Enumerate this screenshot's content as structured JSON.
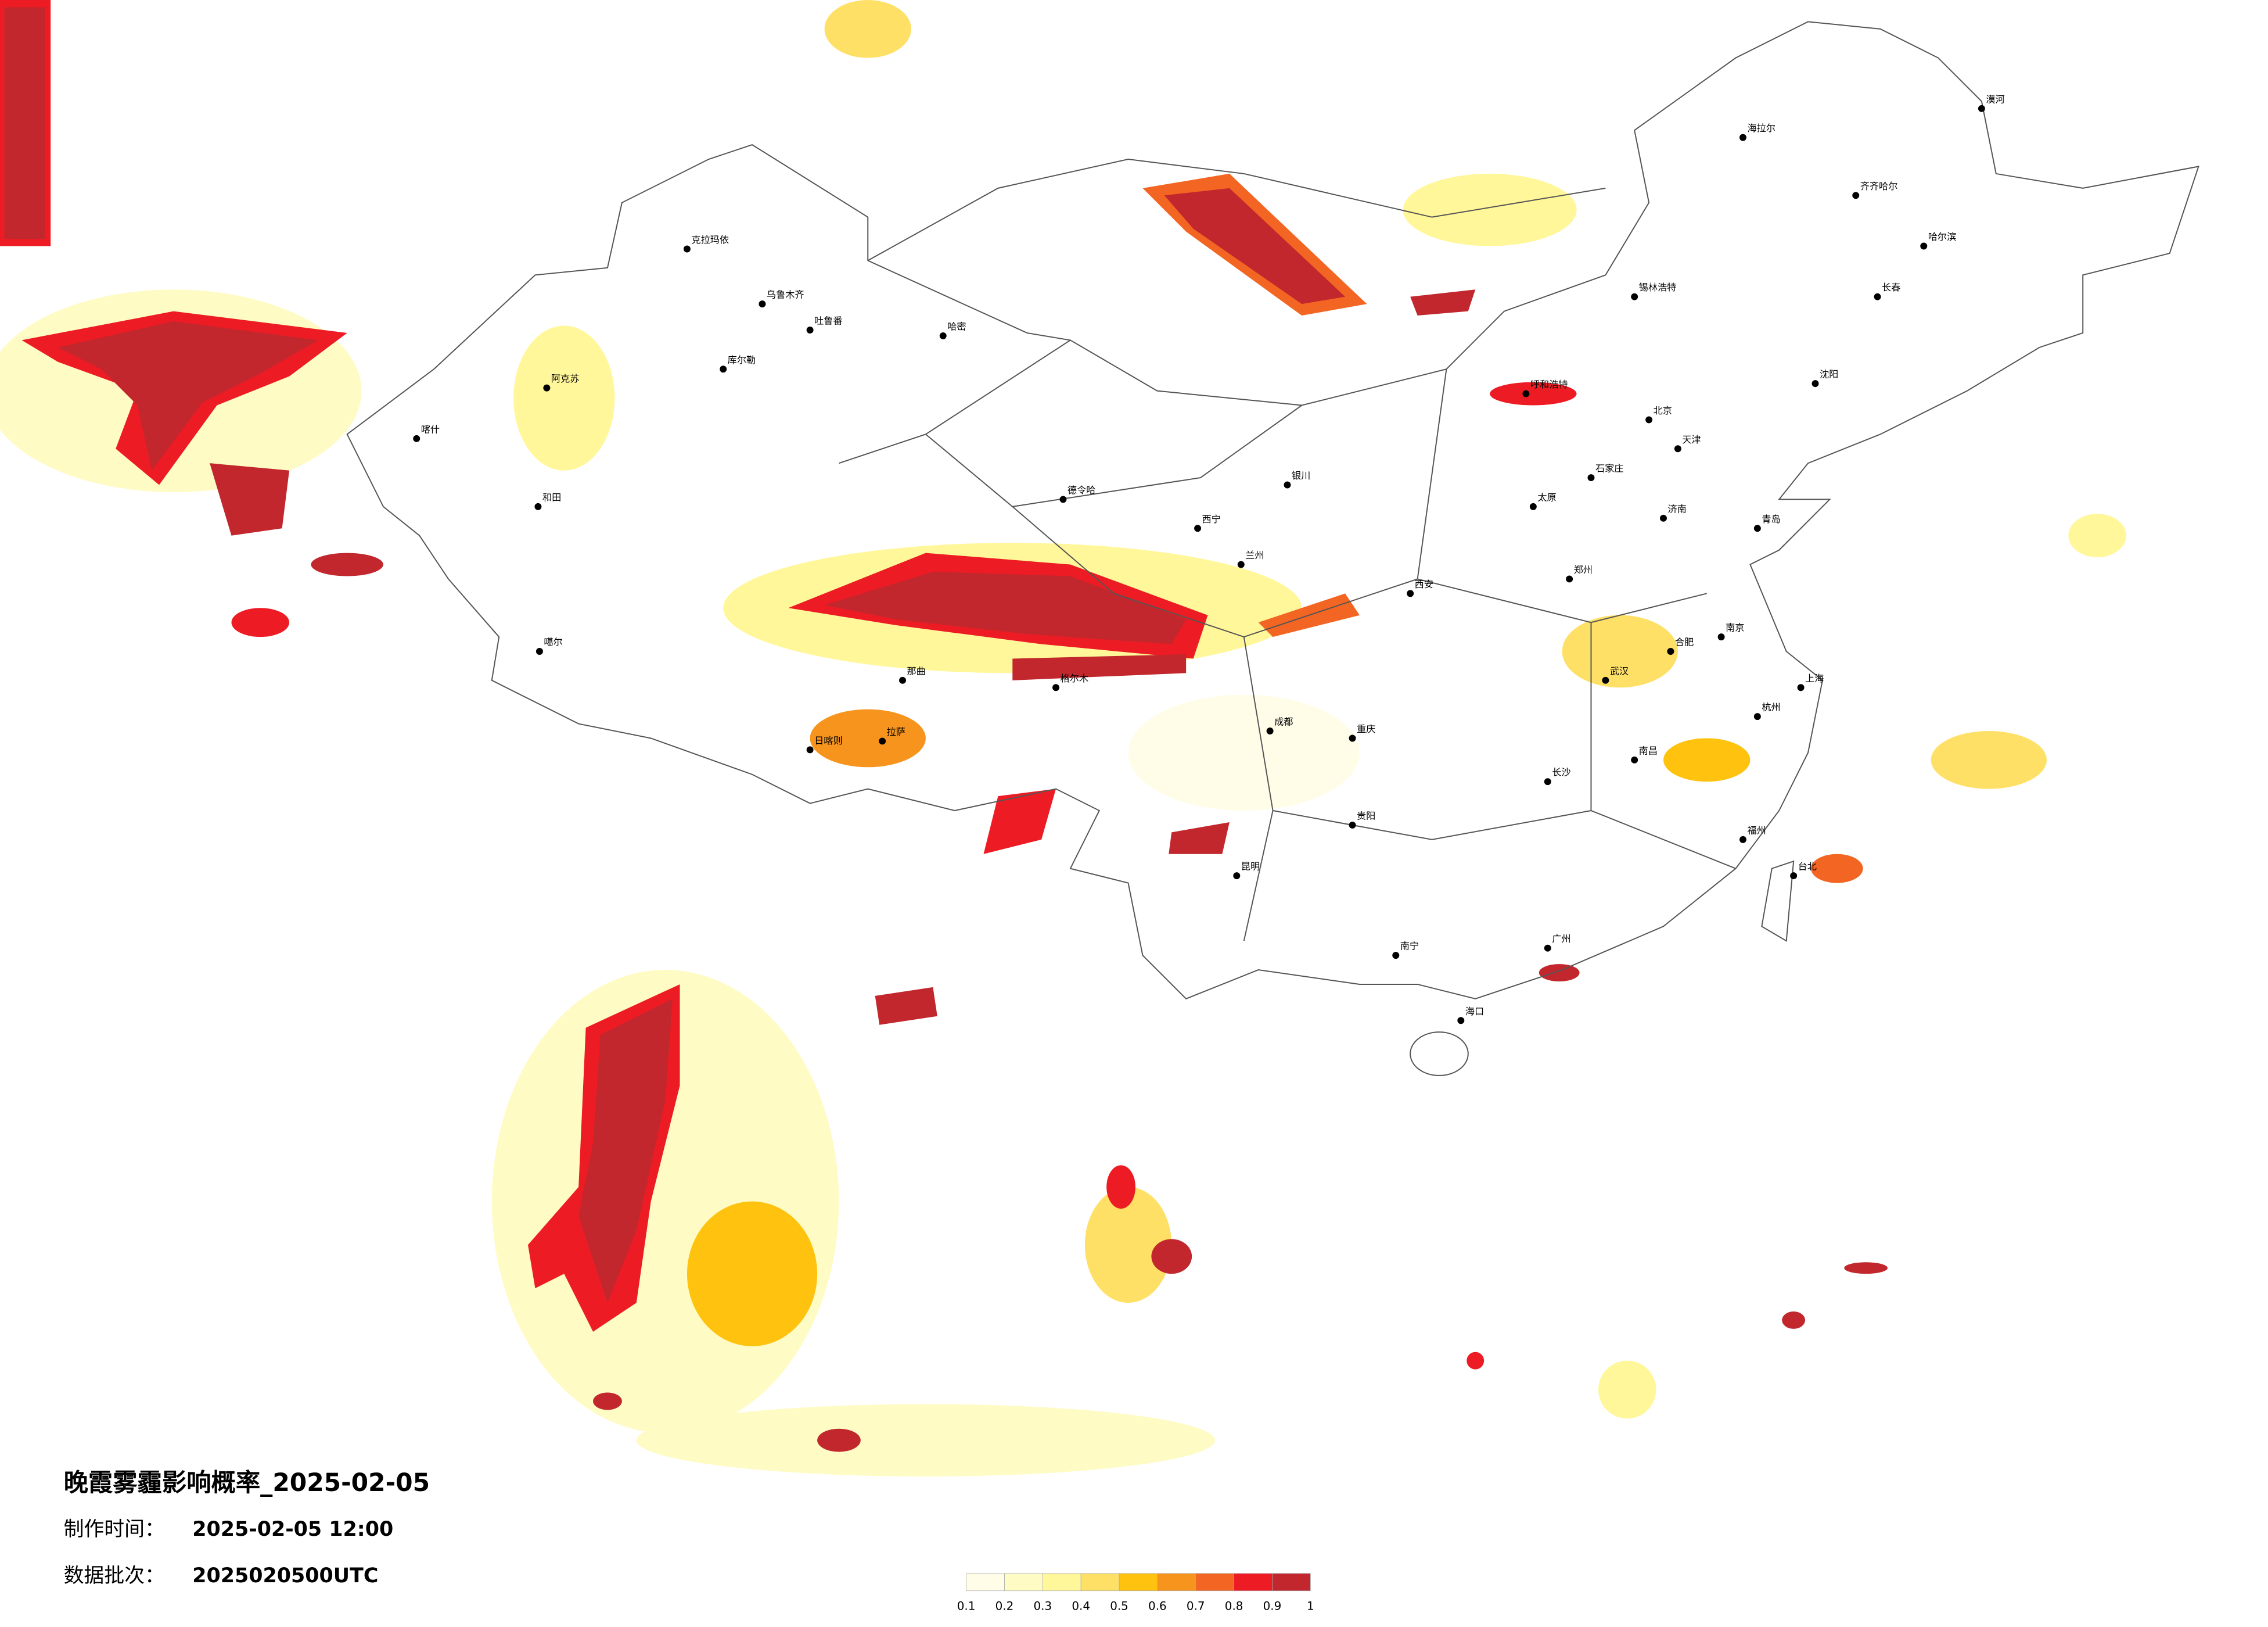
{
  "title": "晚霞雾霾影响概率_2025-02-05",
  "made_time": {
    "label": "制作时间：",
    "value": "2025-02-05 12:00"
  },
  "batch": {
    "label": "数据批次：",
    "value": "2025020500UTC"
  },
  "legend": {
    "ticks": [
      0.1,
      0.2,
      0.3,
      0.4,
      0.5,
      0.6,
      0.7,
      0.8,
      0.9,
      1
    ],
    "colors": [
      "#fffde8",
      "#fffbc4",
      "#fff799",
      "#ffe066",
      "#ffc20e",
      "#f7941d",
      "#f26522",
      "#ed1c24",
      "#c1272d"
    ]
  },
  "cities": [
    "乌鲁木齐",
    "克拉玛依",
    "哈密",
    "吐鲁番",
    "库尔勒",
    "阿克苏",
    "喀什",
    "和田",
    "噶尔",
    "日喀则",
    "拉萨",
    "那曲",
    "德令哈",
    "格尔木",
    "西宁",
    "兰州",
    "银川",
    "呼和浩特",
    "北京",
    "天津",
    "石家庄",
    "太原",
    "济南",
    "郑州",
    "西安",
    "成都",
    "重庆",
    "武汉",
    "长沙",
    "南昌",
    "合肥",
    "南京",
    "上海",
    "杭州",
    "福州",
    "广州",
    "南宁",
    "海口",
    "昆明",
    "贵阳",
    "沈阳",
    "长春",
    "哈尔滨",
    "海拉尔",
    "齐齐哈尔",
    "台北",
    "青岛",
    "锡林浩特",
    "漠河"
  ]
}
